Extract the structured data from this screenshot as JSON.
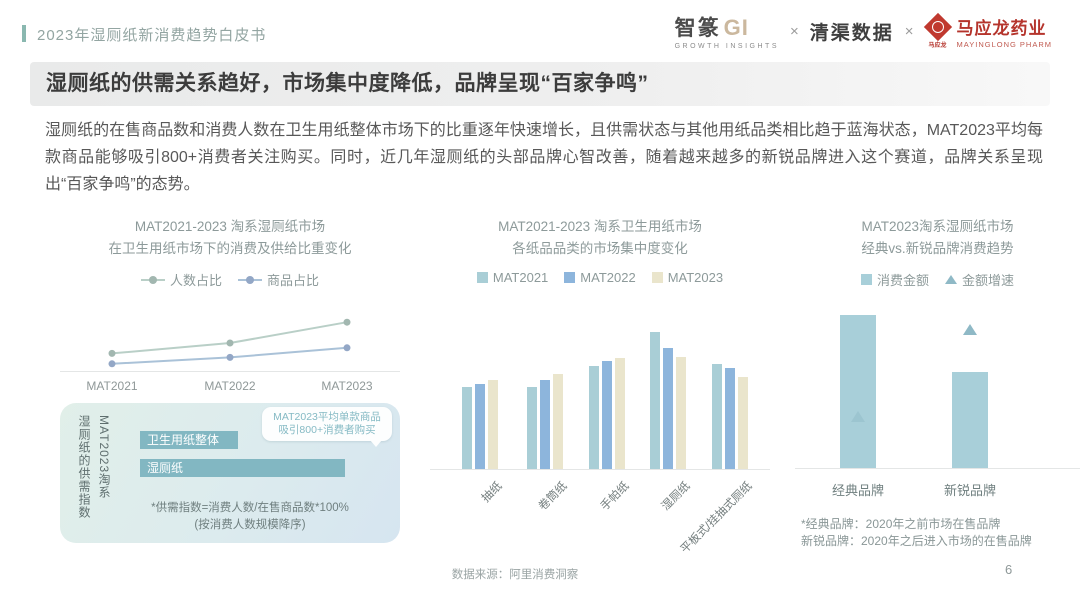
{
  "header": {
    "doc_title": "2023年湿厕纸新消费趋势白皮书",
    "logos": {
      "zhizhuan_cn": "智篆",
      "zhizhuan_gi": "GI",
      "zhizhuan_sub": "GROWTH INSIGHTS",
      "separator": "×",
      "qingqu": "清渠数据",
      "mayinglong_seal": "马应龙",
      "mayinglong_name": "马应龙药业",
      "mayinglong_sub": "MAYINGLONG PHARM"
    }
  },
  "banner": {
    "title": "湿厕纸的供需关系趋好，市场集中度降低，品牌呈现“百家争鸣”"
  },
  "body_paragraph": "湿厕纸的在售商品数和消费人数在卫生用纸整体市场下的比重逐年快速增长，且供需状态与其他用纸品类相比趋于蓝海状态，MAT2023平均每款商品能够吸引800+消费者关注购买。同时，近几年湿厕纸的头部品牌心智改善，随着越来越多的新锐品牌进入这个赛道，品牌关系呈现出“百家争鸣”的态势。",
  "supply_box": {
    "vertical_line1": "MAT2023淘系",
    "vertical_line2": "湿厕纸的供需指数",
    "bar1_label": "卫生用纸整体",
    "bar2_label": "湿厕纸",
    "callout_line1": "MAT2023平均单款商品",
    "callout_line2": "吸引800+消费者购买",
    "footnote1": "*供需指数=消费人数/在售商品数*100%",
    "footnote2": "(按消费人数规模降序)"
  },
  "chart_data": [
    {
      "id": "wet-wipe-share-trend",
      "type": "line",
      "title": "MAT2021-2023 淘系湿厕纸市场",
      "subtitle": "在卫生用纸市场下的消费及供给比重变化",
      "x": [
        "MAT2021",
        "MAT2022",
        "MAT2023"
      ],
      "series": [
        {
          "name": "人数占比",
          "color": "#b9cfc7",
          "marker": "#a2b7b0",
          "values": [
            22,
            35,
            61
          ]
        },
        {
          "name": "商品占比",
          "color": "#aac2d8",
          "marker": "#93a7c6",
          "values": [
            9,
            17,
            29
          ]
        }
      ],
      "ylim": [
        0,
        100
      ],
      "unit": "relative share index (y-axis unlabeled, values estimated from pixels)",
      "legend_position": "top",
      "grid": false
    },
    {
      "id": "market-concentration",
      "type": "bar",
      "title": "MAT2021-2023 淘系卫生用纸市场",
      "subtitle": "各纸品品类的市场集中度变化",
      "categories": [
        "抽纸",
        "卷筒纸",
        "手帕纸",
        "湿厕纸",
        "平板式/挂抽式厕纸"
      ],
      "series": [
        {
          "name": "MAT2021",
          "color": "#a9ced6",
          "values": [
            60,
            60,
            75,
            100,
            77
          ]
        },
        {
          "name": "MAT2022",
          "color": "#8db5dc",
          "values": [
            62,
            65,
            79,
            88,
            74
          ]
        },
        {
          "name": "MAT2023",
          "color": "#eae5cc",
          "values": [
            65,
            69,
            81,
            82,
            67
          ]
        }
      ],
      "ylim": [
        0,
        110
      ],
      "unit": "relative concentration index (y-axis unlabeled, values estimated from pixels)",
      "legend_position": "top",
      "grid": false
    },
    {
      "id": "classic-vs-new-brands",
      "type": "bar",
      "title": "MAT2023淘系湿厕纸市场",
      "subtitle": "经典vs.新锐品牌消费趋势",
      "categories": [
        "经典品牌",
        "新锐品牌"
      ],
      "series": [
        {
          "name": "消费金额",
          "mark": "bar",
          "color": "#a8cfd9",
          "values": [
            100,
            63
          ]
        },
        {
          "name": "金额增速",
          "mark": "triangle",
          "color": "#8fb9c6",
          "values": [
            34,
            91
          ]
        }
      ],
      "ylim": [
        0,
        110
      ],
      "unit": "relative index (y-axis unlabeled, values estimated from pixels)",
      "legend_position": "top",
      "grid": false,
      "footnote1": "*经典品牌：2020年之前市场在售品牌",
      "footnote2": "新锐品牌：2020年之后进入市场的在售品牌"
    }
  ],
  "footer": {
    "source": "数据来源：阿里消费洞察",
    "page": "6"
  }
}
